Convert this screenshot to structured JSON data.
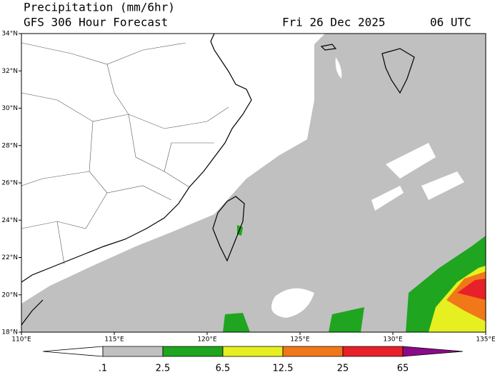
{
  "header": {
    "title": "Precipitation (mm/6hr)",
    "subtitle": "GFS 306 Hour Forecast",
    "date": "Fri 26 Dec 2025",
    "time": "06 UTC"
  },
  "map": {
    "lon_range": [
      110,
      135
    ],
    "lat_range": [
      18,
      34
    ],
    "lat_ticks": [
      {
        "value": 18,
        "label": "18°N"
      },
      {
        "value": 20,
        "label": "20°N"
      },
      {
        "value": 22,
        "label": "22°N"
      },
      {
        "value": 24,
        "label": "24°N"
      },
      {
        "value": 26,
        "label": "26°N"
      },
      {
        "value": 28,
        "label": "28°N"
      },
      {
        "value": 30,
        "label": "30°N"
      },
      {
        "value": 32,
        "label": "32°N"
      },
      {
        "value": 34,
        "label": "34°N"
      }
    ],
    "lon_ticks": [
      {
        "value": 110,
        "label": "110°E"
      },
      {
        "value": 115,
        "label": "115°E"
      },
      {
        "value": 120,
        "label": "120°E"
      },
      {
        "value": 125,
        "label": "125°E"
      },
      {
        "value": 130,
        "label": "130°E"
      },
      {
        "value": 135,
        "label": "135°E"
      }
    ]
  },
  "legend": {
    "colors": [
      "#ffffff",
      "#c0c0c0",
      "#1fa51f",
      "#e6ef1f",
      "#f07818",
      "#e8202a",
      "#8a0a8a"
    ],
    "levels": [
      {
        "value": 0.1,
        "label": ".1"
      },
      2.5,
      6.5,
      12.5,
      25,
      65
    ]
  }
}
